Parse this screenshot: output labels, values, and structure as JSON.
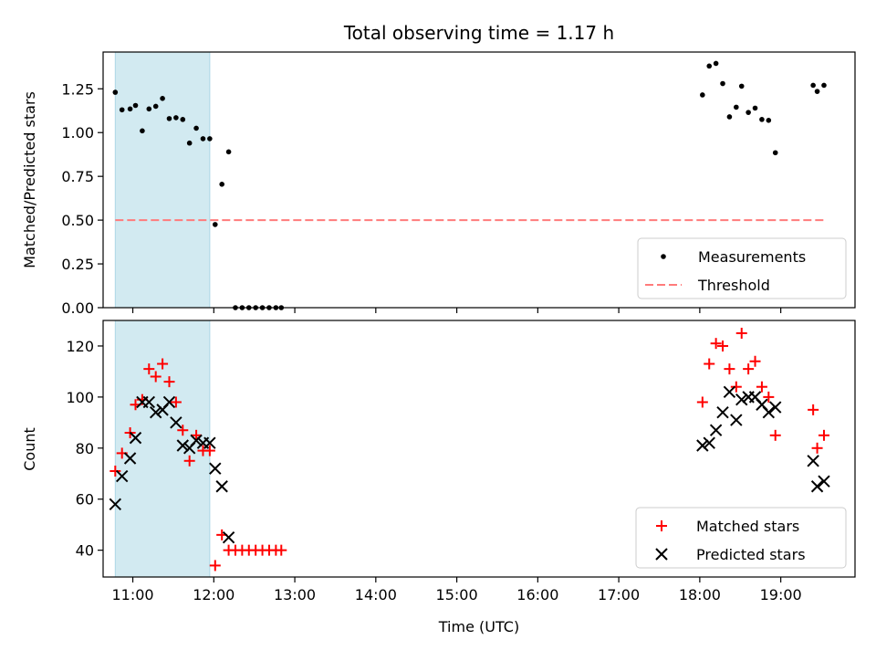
{
  "chart_data": [
    {
      "type": "scatter",
      "title": "Total observing time = 1.17 h",
      "xlabel": "",
      "ylabel": "Matched/Predicted stars",
      "xlim": [
        "10:38",
        "19:55"
      ],
      "ylim": [
        0,
        1.46
      ],
      "yticks": [
        "0.00",
        "0.25",
        "0.50",
        "0.75",
        "1.00",
        "1.25"
      ],
      "shaded_region": {
        "x": [
          "10:47",
          "11:57"
        ],
        "color": "#add8e6"
      },
      "legend": {
        "position": "lower-right",
        "entries": [
          "Measurements",
          "Threshold"
        ]
      },
      "colors": {
        "measurements": "#000000",
        "threshold": "#ff7b7b",
        "shade": "#add8e6"
      },
      "series": [
        {
          "name": "Measurements",
          "marker": "dot",
          "points": [
            {
              "x": "10:47",
              "y": 1.23
            },
            {
              "x": "10:52",
              "y": 1.13
            },
            {
              "x": "10:58",
              "y": 1.135
            },
            {
              "x": "11:02",
              "y": 1.155
            },
            {
              "x": "11:07",
              "y": 1.01
            },
            {
              "x": "11:12",
              "y": 1.135
            },
            {
              "x": "11:17",
              "y": 1.15
            },
            {
              "x": "11:22",
              "y": 1.195
            },
            {
              "x": "11:27",
              "y": 1.08
            },
            {
              "x": "11:32",
              "y": 1.085
            },
            {
              "x": "11:37",
              "y": 1.075
            },
            {
              "x": "11:42",
              "y": 0.94
            },
            {
              "x": "11:47",
              "y": 1.025
            },
            {
              "x": "11:52",
              "y": 0.965
            },
            {
              "x": "11:57",
              "y": 0.965
            },
            {
              "x": "12:01",
              "y": 0.475
            },
            {
              "x": "12:06",
              "y": 0.705
            },
            {
              "x": "12:11",
              "y": 0.89
            },
            {
              "x": "12:16",
              "y": 0.0
            },
            {
              "x": "12:21",
              "y": 0.0
            },
            {
              "x": "12:26",
              "y": 0.0
            },
            {
              "x": "12:31",
              "y": 0.0
            },
            {
              "x": "12:36",
              "y": 0.0
            },
            {
              "x": "12:41",
              "y": 0.0
            },
            {
              "x": "12:46",
              "y": 0.0
            },
            {
              "x": "12:50",
              "y": 0.0
            },
            {
              "x": "18:02",
              "y": 1.215
            },
            {
              "x": "18:07",
              "y": 1.38
            },
            {
              "x": "18:12",
              "y": 1.395
            },
            {
              "x": "18:17",
              "y": 1.28
            },
            {
              "x": "18:22",
              "y": 1.09
            },
            {
              "x": "18:27",
              "y": 1.145
            },
            {
              "x": "18:31",
              "y": 1.265
            },
            {
              "x": "18:36",
              "y": 1.115
            },
            {
              "x": "18:41",
              "y": 1.14
            },
            {
              "x": "18:46",
              "y": 1.075
            },
            {
              "x": "18:51",
              "y": 1.07
            },
            {
              "x": "18:56",
              "y": 0.885
            },
            {
              "x": "19:24",
              "y": 1.27
            },
            {
              "x": "19:27",
              "y": 1.235
            },
            {
              "x": "19:32",
              "y": 1.27
            }
          ]
        },
        {
          "name": "Threshold",
          "line_style": "dashed",
          "points": [
            {
              "x": "10:47",
              "y": 0.5
            },
            {
              "x": "19:32",
              "y": 0.5
            }
          ]
        }
      ]
    },
    {
      "type": "scatter",
      "title": "",
      "xlabel": "Time (UTC)",
      "ylabel": "Count",
      "xlim": [
        "10:38",
        "19:55"
      ],
      "ylim": [
        29.5,
        130
      ],
      "yticks": [
        "40",
        "60",
        "80",
        "100",
        "120"
      ],
      "xticks": [
        "11:00",
        "12:00",
        "13:00",
        "14:00",
        "15:00",
        "16:00",
        "17:00",
        "18:00",
        "19:00"
      ],
      "shaded_region": {
        "x": [
          "10:47",
          "11:57"
        ],
        "color": "#add8e6"
      },
      "legend": {
        "position": "lower-right",
        "entries": [
          "Matched stars",
          "Predicted stars"
        ]
      },
      "colors": {
        "matched": "#ff0000",
        "predicted": "#000000",
        "shade": "#add8e6"
      },
      "series": [
        {
          "name": "Matched stars",
          "marker": "plus",
          "points": [
            {
              "x": "10:47",
              "y": 71
            },
            {
              "x": "10:52",
              "y": 78
            },
            {
              "x": "10:58",
              "y": 86
            },
            {
              "x": "11:02",
              "y": 97
            },
            {
              "x": "11:07",
              "y": 99
            },
            {
              "x": "11:12",
              "y": 111
            },
            {
              "x": "11:17",
              "y": 108
            },
            {
              "x": "11:22",
              "y": 113
            },
            {
              "x": "11:27",
              "y": 106
            },
            {
              "x": "11:32",
              "y": 98
            },
            {
              "x": "11:37",
              "y": 87
            },
            {
              "x": "11:42",
              "y": 75
            },
            {
              "x": "11:47",
              "y": 85
            },
            {
              "x": "11:52",
              "y": 79
            },
            {
              "x": "11:57",
              "y": 79
            },
            {
              "x": "12:01",
              "y": 34
            },
            {
              "x": "12:06",
              "y": 46
            },
            {
              "x": "12:11",
              "y": 40
            },
            {
              "x": "12:16",
              "y": 40
            },
            {
              "x": "12:21",
              "y": 40
            },
            {
              "x": "12:26",
              "y": 40
            },
            {
              "x": "12:31",
              "y": 40
            },
            {
              "x": "12:36",
              "y": 40
            },
            {
              "x": "12:41",
              "y": 40
            },
            {
              "x": "12:46",
              "y": 40
            },
            {
              "x": "12:50",
              "y": 40
            },
            {
              "x": "18:02",
              "y": 98
            },
            {
              "x": "18:07",
              "y": 113
            },
            {
              "x": "18:12",
              "y": 121
            },
            {
              "x": "18:17",
              "y": 120
            },
            {
              "x": "18:22",
              "y": 111
            },
            {
              "x": "18:27",
              "y": 104
            },
            {
              "x": "18:31",
              "y": 125
            },
            {
              "x": "18:36",
              "y": 111
            },
            {
              "x": "18:41",
              "y": 114
            },
            {
              "x": "18:46",
              "y": 104
            },
            {
              "x": "18:51",
              "y": 100
            },
            {
              "x": "18:56",
              "y": 85
            },
            {
              "x": "19:24",
              "y": 95
            },
            {
              "x": "19:27",
              "y": 80
            },
            {
              "x": "19:32",
              "y": 85
            }
          ]
        },
        {
          "name": "Predicted stars",
          "marker": "x",
          "points": [
            {
              "x": "10:47",
              "y": 58
            },
            {
              "x": "10:52",
              "y": 69
            },
            {
              "x": "10:58",
              "y": 76
            },
            {
              "x": "11:02",
              "y": 84
            },
            {
              "x": "11:07",
              "y": 98
            },
            {
              "x": "11:12",
              "y": 98
            },
            {
              "x": "11:17",
              "y": 94
            },
            {
              "x": "11:22",
              "y": 95
            },
            {
              "x": "11:27",
              "y": 98
            },
            {
              "x": "11:32",
              "y": 90
            },
            {
              "x": "11:37",
              "y": 81
            },
            {
              "x": "11:42",
              "y": 80
            },
            {
              "x": "11:47",
              "y": 83
            },
            {
              "x": "11:52",
              "y": 82
            },
            {
              "x": "11:57",
              "y": 82
            },
            {
              "x": "12:01",
              "y": 72
            },
            {
              "x": "12:06",
              "y": 65
            },
            {
              "x": "12:11",
              "y": 45
            },
            {
              "x": "18:02",
              "y": 81
            },
            {
              "x": "18:07",
              "y": 82
            },
            {
              "x": "18:12",
              "y": 87
            },
            {
              "x": "18:17",
              "y": 94
            },
            {
              "x": "18:22",
              "y": 102
            },
            {
              "x": "18:27",
              "y": 91
            },
            {
              "x": "18:31",
              "y": 99
            },
            {
              "x": "18:36",
              "y": 100
            },
            {
              "x": "18:41",
              "y": 100
            },
            {
              "x": "18:46",
              "y": 97
            },
            {
              "x": "18:51",
              "y": 94
            },
            {
              "x": "18:56",
              "y": 96
            },
            {
              "x": "19:24",
              "y": 75
            },
            {
              "x": "19:27",
              "y": 65
            },
            {
              "x": "19:32",
              "y": 67
            }
          ]
        }
      ]
    }
  ]
}
